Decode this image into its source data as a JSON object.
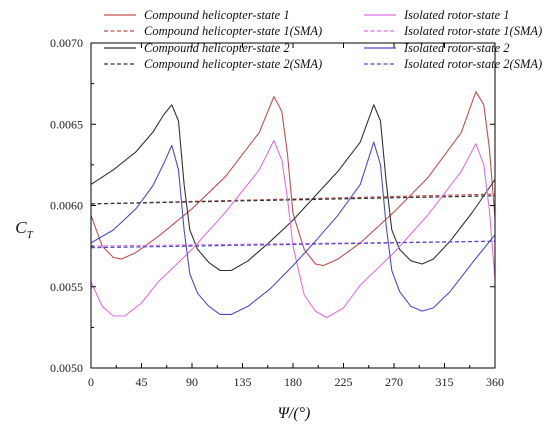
{
  "chart_data": {
    "type": "line",
    "xlabel": "Ψ/(°)",
    "ylabel_main": "C",
    "ylabel_sub": "T",
    "xlim": [
      0,
      360
    ],
    "ylim": [
      0.005,
      0.007
    ],
    "x_ticks": [
      0,
      45,
      90,
      135,
      180,
      225,
      270,
      315,
      360
    ],
    "x_tick_labels": [
      "0",
      "45",
      "90",
      "135",
      "180",
      "225",
      "270",
      "315",
      "360"
    ],
    "y_ticks": [
      0.005,
      0.0055,
      0.006,
      0.0065,
      0.007
    ],
    "y_tick_labels": [
      "0.0050",
      "0.0055",
      "0.0060",
      "0.0065",
      "0.0070"
    ],
    "grid": false,
    "legend_placement": "top",
    "series": [
      {
        "name": "Compound helicopter-state 1",
        "color": "#c0504d",
        "dash": "solid",
        "x": [
          0,
          10,
          20,
          27,
          40,
          60,
          90,
          120,
          150,
          163,
          170,
          175,
          180,
          190,
          200,
          207,
          220,
          240,
          270,
          300,
          330,
          343,
          350,
          355,
          360
        ],
        "y": [
          0.00594,
          0.00575,
          0.00568,
          0.00567,
          0.00571,
          0.00581,
          0.00598,
          0.00618,
          0.00645,
          0.00667,
          0.00658,
          0.00632,
          0.00595,
          0.00573,
          0.00564,
          0.00563,
          0.00567,
          0.00577,
          0.00596,
          0.00617,
          0.00645,
          0.0067,
          0.00662,
          0.00635,
          0.00592
        ]
      },
      {
        "name": "Compound helicopter-state 1(SMA)",
        "color": "#c0504d",
        "dash": "dash",
        "x": [
          0,
          360
        ],
        "y": [
          0.00601,
          0.00607
        ]
      },
      {
        "name": "Compound helicopter-state 2",
        "color": "#333333",
        "dash": "solid",
        "x": [
          0,
          20,
          40,
          55,
          65,
          72,
          78,
          83,
          88,
          95,
          105,
          115,
          125,
          140,
          160,
          180,
          200,
          220,
          240,
          252,
          258,
          263,
          268,
          275,
          285,
          295,
          305,
          320,
          340,
          360
        ],
        "y": [
          0.00613,
          0.00622,
          0.00633,
          0.00645,
          0.00656,
          0.00662,
          0.00652,
          0.00613,
          0.00585,
          0.00573,
          0.00565,
          0.0056,
          0.0056,
          0.00566,
          0.00578,
          0.00591,
          0.00606,
          0.00621,
          0.00639,
          0.00662,
          0.00652,
          0.00615,
          0.00585,
          0.00573,
          0.00566,
          0.00564,
          0.00567,
          0.00578,
          0.00596,
          0.00616
        ]
      },
      {
        "name": "Compound helicopter-state 2(SMA)",
        "color": "#333333",
        "dash": "dash",
        "x": [
          0,
          360
        ],
        "y": [
          0.00601,
          0.00606
        ]
      },
      {
        "name": "Isolated rotor-state 1",
        "color": "#e070e0",
        "dash": "solid",
        "x": [
          0,
          10,
          20,
          30,
          45,
          60,
          90,
          120,
          150,
          163,
          170,
          175,
          180,
          190,
          200,
          210,
          225,
          240,
          270,
          300,
          330,
          343,
          350,
          355,
          360
        ],
        "y": [
          0.00553,
          0.00538,
          0.00532,
          0.00532,
          0.0054,
          0.00553,
          0.00573,
          0.00596,
          0.00622,
          0.0064,
          0.00628,
          0.00605,
          0.00575,
          0.00545,
          0.00535,
          0.00531,
          0.00537,
          0.00551,
          0.00571,
          0.00594,
          0.00621,
          0.00638,
          0.00625,
          0.00597,
          0.00555
        ]
      },
      {
        "name": "Isolated rotor-state 1(SMA)",
        "color": "#e070e0",
        "dash": "dash",
        "x": [
          0,
          360
        ],
        "y": [
          0.00575,
          0.00578
        ]
      },
      {
        "name": "Isolated rotor-state 2",
        "color": "#4b4bcf",
        "dash": "solid",
        "x": [
          0,
          20,
          40,
          55,
          65,
          72,
          78,
          83,
          88,
          95,
          105,
          115,
          125,
          140,
          160,
          180,
          200,
          220,
          240,
          252,
          258,
          263,
          268,
          275,
          285,
          295,
          305,
          320,
          340,
          360
        ],
        "y": [
          0.00577,
          0.00585,
          0.00598,
          0.00612,
          0.00626,
          0.00637,
          0.00622,
          0.00585,
          0.00558,
          0.00546,
          0.00538,
          0.00533,
          0.00533,
          0.00538,
          0.00549,
          0.00563,
          0.00578,
          0.00594,
          0.00613,
          0.00639,
          0.00625,
          0.00588,
          0.0056,
          0.00547,
          0.00538,
          0.00535,
          0.00537,
          0.00547,
          0.00565,
          0.00582
        ]
      },
      {
        "name": "Isolated rotor-state 2(SMA)",
        "color": "#4b4bcf",
        "dash": "dash",
        "x": [
          0,
          360
        ],
        "y": [
          0.00574,
          0.00578
        ]
      }
    ]
  }
}
